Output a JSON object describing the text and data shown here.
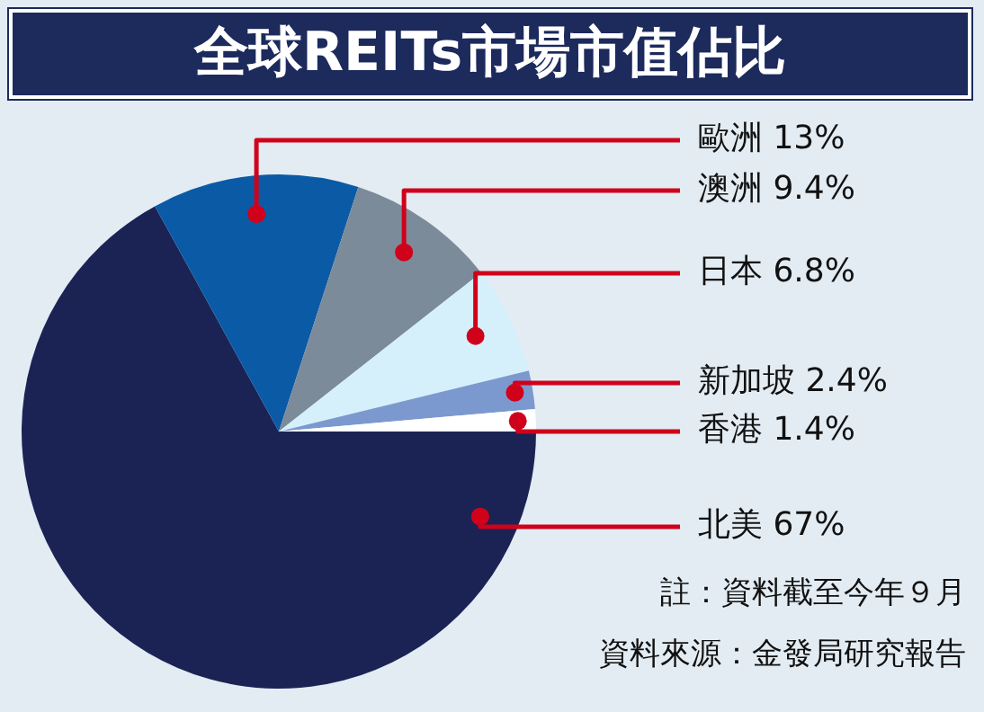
{
  "chart_data": {
    "type": "pie",
    "title": "全球REITs市場市值佔比",
    "categories": [
      "北美",
      "歐洲",
      "澳洲",
      "日本",
      "新加坡",
      "香港"
    ],
    "values": [
      67,
      13,
      9.4,
      6.8,
      2.4,
      1.4
    ],
    "value_labels": [
      "67%",
      "13%",
      "9.4%",
      "6.8%",
      "2.4%",
      "1.4%"
    ],
    "colors": [
      "#1b2355",
      "#0b5aa6",
      "#7b8b99",
      "#d6f0fb",
      "#7c99cf",
      "#ffffff"
    ],
    "annotations": [
      "註：資料截至今年９月",
      "資料來源：金發局研究報告"
    ]
  }
}
